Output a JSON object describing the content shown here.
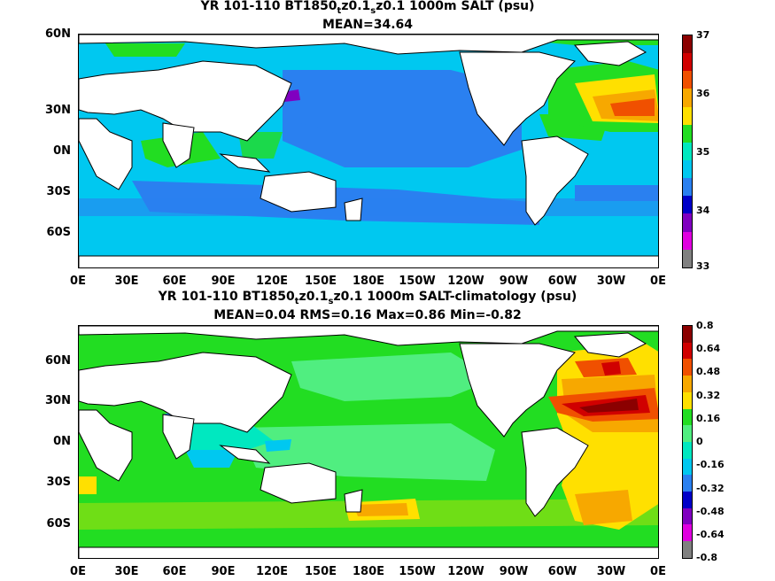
{
  "panels": [
    {
      "title_prefix": "YR 101-110 BT1850",
      "sub1": "t",
      "mid": "z0.1",
      "sub2": "s",
      "title_suffix": "z0.1 1000m SALT (psu)",
      "stats": "MEAN=34.64",
      "colorbar_labels": [
        "37",
        "36",
        "35",
        "34",
        "33"
      ],
      "colors": [
        "#8b0000",
        "#d00000",
        "#f05000",
        "#f7a800",
        "#ffe000",
        "#22dd22",
        "#00e8c0",
        "#00c8f0",
        "#2a80f0",
        "#0000c8",
        "#8000c0",
        "#e000e0",
        "#808080"
      ]
    },
    {
      "title_prefix": "YR 101-110 BT1850",
      "sub1": "t",
      "mid": "z0.1",
      "sub2": "s",
      "title_suffix": "z0.1 1000m SALT-climatology (psu)",
      "stats": "MEAN=0.04   RMS=0.16   Max=0.86   Min=-0.82",
      "colorbar_labels": [
        "0.8",
        "0.64",
        "0.48",
        "0.32",
        "0.16",
        "0",
        "-0.16",
        "-0.32",
        "-0.48",
        "-0.64",
        "-0.8"
      ],
      "colors": [
        "#8b0000",
        "#d00000",
        "#f05000",
        "#f7a800",
        "#ffe000",
        "#22dd22",
        "#50ee80",
        "#00e8c0",
        "#00c8f0",
        "#2a80f0",
        "#0000c8",
        "#8000c0",
        "#e000e0",
        "#808080"
      ]
    }
  ],
  "lat_labels": [
    "60N",
    "30N",
    "0N",
    "30S",
    "60S"
  ],
  "lon_labels": [
    "0E",
    "30E",
    "60E",
    "90E",
    "120E",
    "150E",
    "180E",
    "150W",
    "120W",
    "90W",
    "60W",
    "30W",
    "0E"
  ]
}
